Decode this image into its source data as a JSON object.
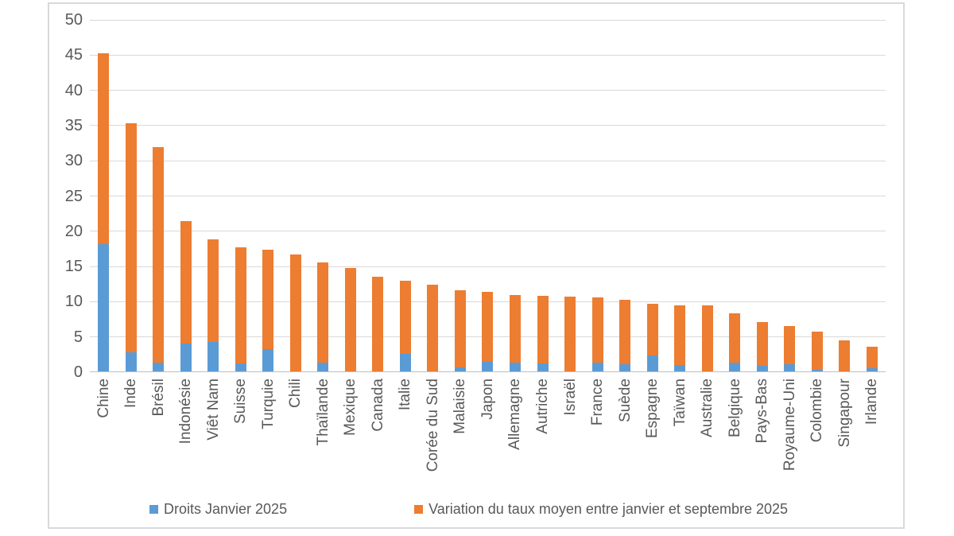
{
  "chart_data": {
    "type": "bar",
    "stacked": true,
    "title": "",
    "xlabel": "",
    "ylabel": "",
    "ylim": [
      0,
      50
    ],
    "yticks": [
      0,
      5,
      10,
      15,
      20,
      25,
      30,
      35,
      40,
      45,
      50
    ],
    "grid": true,
    "legend_position": "bottom",
    "categories": [
      "Chine",
      "Inde",
      "Brésil",
      "Indonésie",
      "Viêt Nam",
      "Suisse",
      "Turquie",
      "Chili",
      "Thaïlande",
      "Mexique",
      "Canada",
      "Italie",
      "Corée du Sud",
      "Malaisie",
      "Japon",
      "Allemagne",
      "Autriche",
      "Israël",
      "France",
      "Suède",
      "Espagne",
      "Taïwan",
      "Australie",
      "Belgique",
      "Pays-Bas",
      "Royaume-Uni",
      "Colombie",
      "Singapour",
      "Irlande"
    ],
    "series": [
      {
        "name": "Droits Janvier 2025",
        "color": "#5B9BD5",
        "values": [
          18.2,
          2.8,
          1.3,
          4.1,
          4.3,
          1.2,
          3.3,
          0,
          1.4,
          0,
          0,
          2.6,
          0,
          0.7,
          1.5,
          1.4,
          1.2,
          0,
          1.4,
          1.1,
          2.4,
          1.0,
          0,
          1.3,
          0.9,
          1.1,
          0.3,
          0,
          0.6
        ]
      },
      {
        "name": "Variation du taux moyen entre janvier et septembre 2025",
        "color": "#ED7D31",
        "values": [
          27.1,
          32.5,
          30.6,
          17.3,
          14.5,
          16.5,
          14.1,
          16.7,
          14.2,
          14.8,
          13.6,
          10.4,
          12.4,
          10.9,
          9.9,
          9.6,
          9.6,
          10.7,
          9.2,
          9.2,
          7.3,
          8.5,
          9.5,
          7.1,
          6.2,
          5.4,
          5.5,
          4.5,
          3.0
        ]
      }
    ],
    "totals": [
      45.3,
      35.3,
      31.9,
      21.4,
      18.8,
      17.7,
      17.4,
      16.7,
      15.6,
      14.8,
      13.6,
      13.0,
      12.4,
      11.6,
      11.4,
      11.0,
      10.8,
      10.7,
      10.6,
      10.3,
      9.7,
      9.5,
      9.5,
      8.4,
      7.1,
      6.5,
      5.8,
      4.5,
      3.6
    ]
  },
  "colors": {
    "series_blue": "#5B9BD5",
    "series_orange": "#ED7D31",
    "axis_text": "#595959",
    "gridline": "#D9D9D9",
    "frame_border": "#D9D9D9"
  },
  "legend": {
    "items": [
      {
        "label": "Droits Janvier 2025",
        "color": "#5B9BD5"
      },
      {
        "label": "Variation du taux moyen entre janvier et septembre 2025",
        "color": "#ED7D31"
      }
    ]
  }
}
